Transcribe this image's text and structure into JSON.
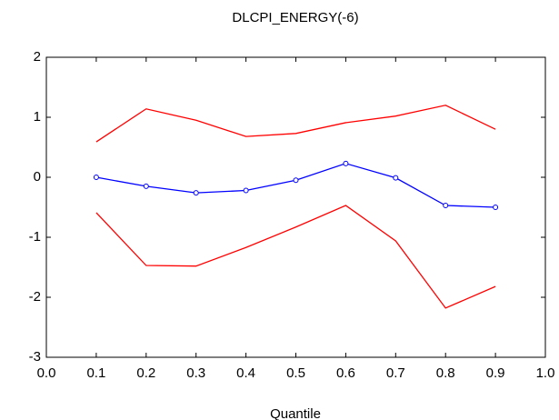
{
  "chart_data": {
    "type": "line",
    "title": "DLCPI_ENERGY(-6)",
    "xlabel": "Quantile",
    "x": [
      0.1,
      0.2,
      0.3,
      0.4,
      0.5,
      0.6,
      0.7,
      0.8,
      0.9
    ],
    "series": [
      {
        "color": "#ff0000",
        "markers": false,
        "values": [
          0.59,
          1.14,
          0.95,
          0.68,
          0.73,
          0.91,
          1.02,
          1.2,
          0.8
        ]
      },
      {
        "color": "#0000ff",
        "markers": true,
        "values": [
          0.0,
          -0.15,
          -0.26,
          -0.22,
          -0.05,
          0.23,
          -0.01,
          -0.47,
          -0.5
        ]
      },
      {
        "color": "#ff0000",
        "markers": false,
        "values": [
          -0.59,
          -1.47,
          -1.48,
          -1.17,
          -0.83,
          -0.47,
          -1.06,
          -2.18,
          -1.82
        ]
      }
    ],
    "xlim": [
      0,
      1
    ],
    "xticks": [
      {
        "value": 0,
        "label": "0.0"
      },
      0.1,
      0.2,
      0.3,
      0.4,
      0.5,
      0.6,
      0.7,
      0.8,
      0.9,
      {
        "value": 1,
        "label": "1.0"
      }
    ],
    "ylim": [
      -3,
      2
    ],
    "yticks": [
      -3,
      -2,
      -1,
      0,
      1,
      2
    ],
    "grid": false
  }
}
